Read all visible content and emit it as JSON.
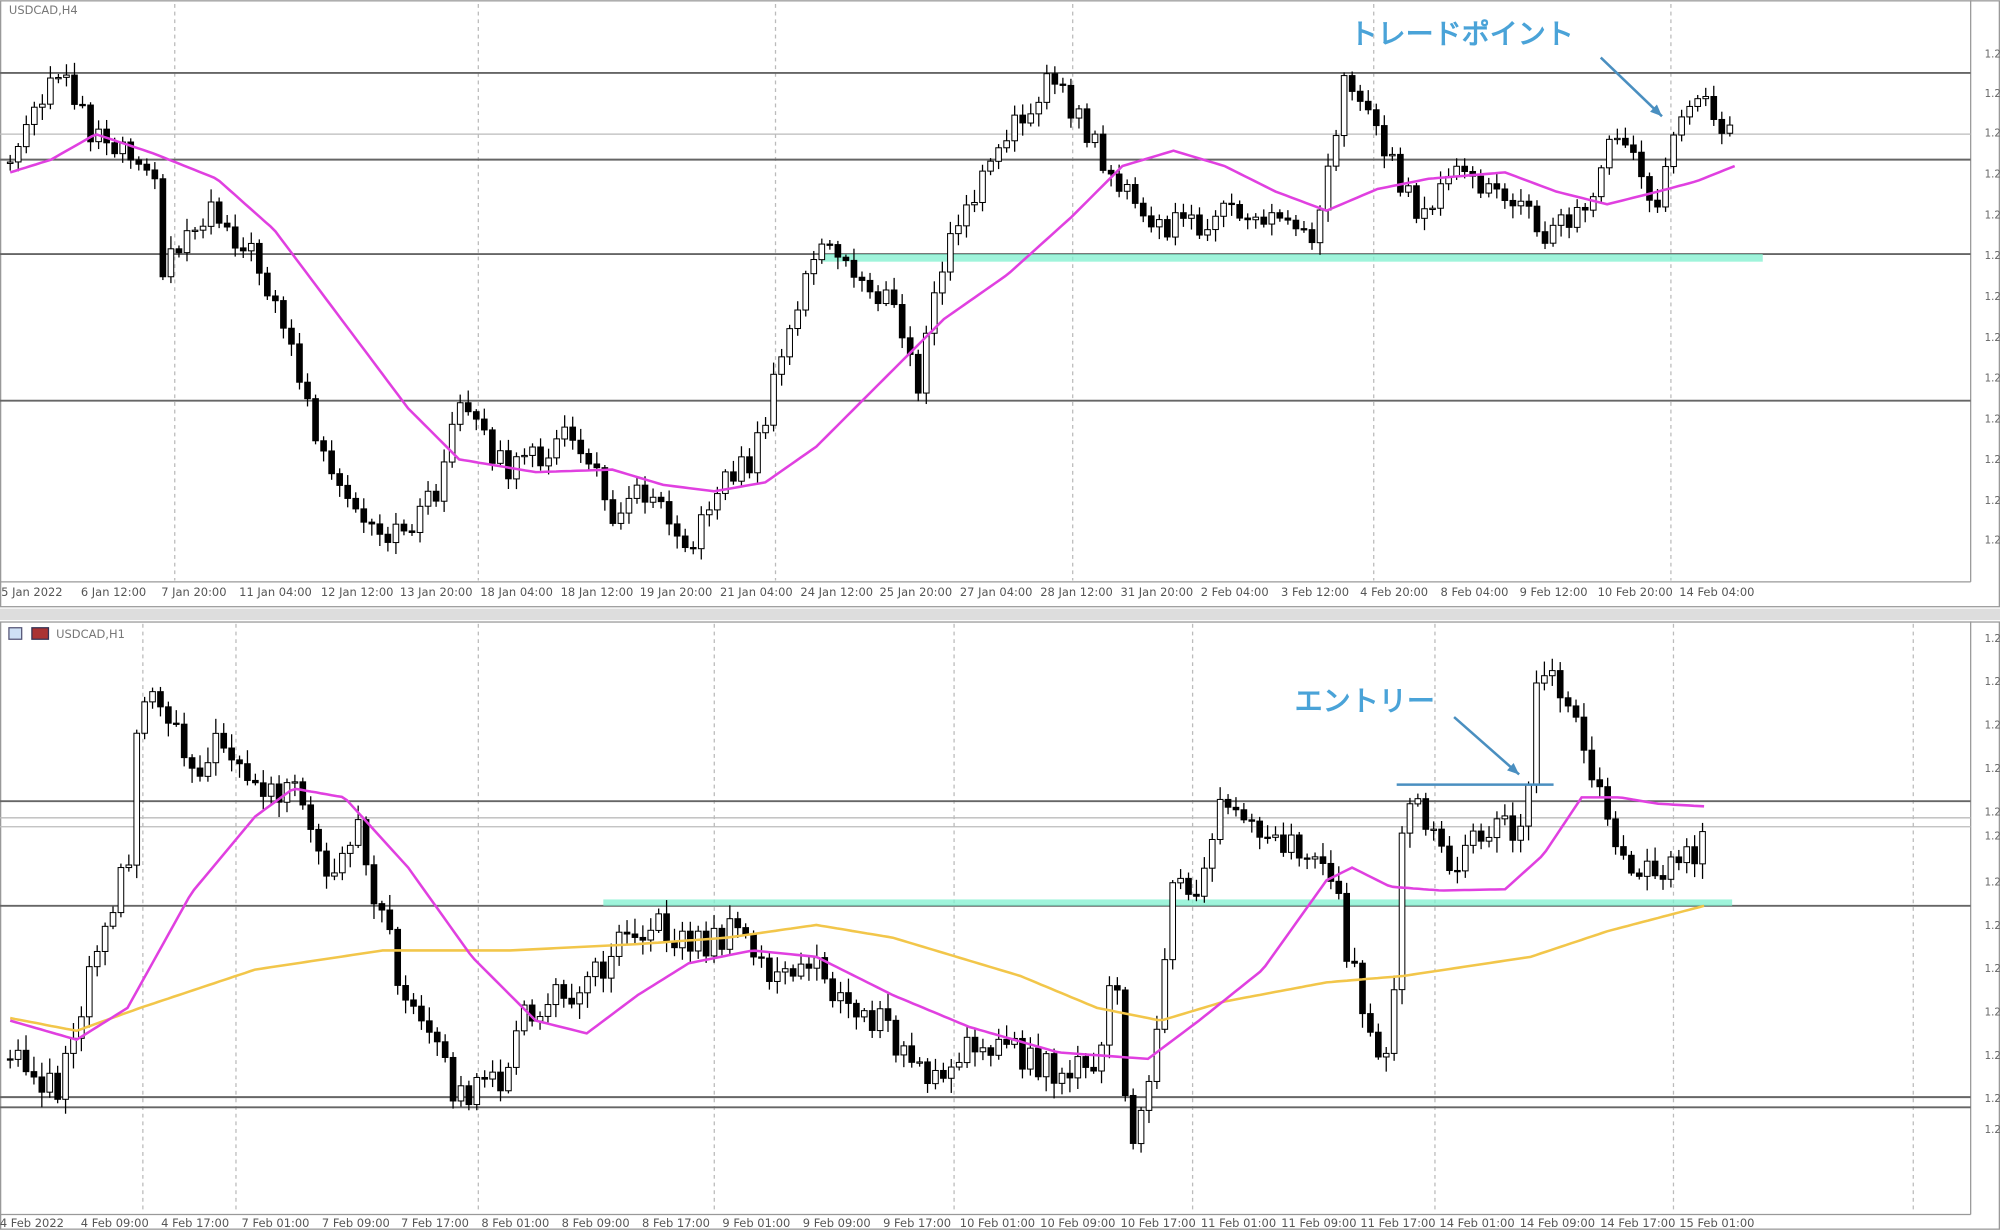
{
  "top_panel": {
    "symbol": "USDCAD,H4",
    "annotation": "トレードポイント",
    "x_labels": [
      "5 Jan 2022",
      "6 Jan 12:00",
      "7 Jan 20:00",
      "11 Jan 04:00",
      "12 Jan 12:00",
      "13 Jan 20:00",
      "18 Jan 04:00",
      "18 Jan 12:00",
      "19 Jan 20:00",
      "21 Jan 04:00",
      "24 Jan 12:00",
      "25 Jan 20:00",
      "27 Jan 04:00",
      "28 Jan 12:00",
      "31 Jan 20:00",
      "2 Feb 04:00",
      "3 Feb 12:00",
      "4 Feb 20:00",
      "8 Feb 04:00",
      "9 Feb 12:00",
      "10 Feb 20:00",
      "14 Feb 04:00"
    ],
    "price_labels": [
      "1.2",
      "1.2",
      "1.2",
      "1.2",
      "1.2",
      "1.2",
      "1.2",
      "1.2",
      "1.2",
      "1.2",
      "1.2",
      "1.2",
      "1.2"
    ]
  },
  "bottom_panel": {
    "symbol": "USDCAD,H1",
    "annotation": "エントリー",
    "x_labels": [
      "4 Feb 2022",
      "4 Feb 09:00",
      "4 Feb 17:00",
      "7 Feb 01:00",
      "7 Feb 09:00",
      "7 Feb 17:00",
      "8 Feb 01:00",
      "8 Feb 09:00",
      "8 Feb 17:00",
      "9 Feb 01:00",
      "9 Feb 09:00",
      "9 Feb 17:00",
      "10 Feb 01:00",
      "10 Feb 09:00",
      "10 Feb 17:00",
      "11 Feb 01:00",
      "11 Feb 09:00",
      "11 Feb 17:00",
      "14 Feb 01:00",
      "14 Feb 09:00",
      "14 Feb 17:00",
      "15 Feb 01:00"
    ],
    "price_labels": [
      "1.2",
      "1.2",
      "1.2",
      "1.2",
      "1.2",
      "1.2",
      "1.2",
      "1.2",
      "1.2",
      "1.2",
      "1.2",
      "1.2",
      "1.2"
    ]
  }
}
